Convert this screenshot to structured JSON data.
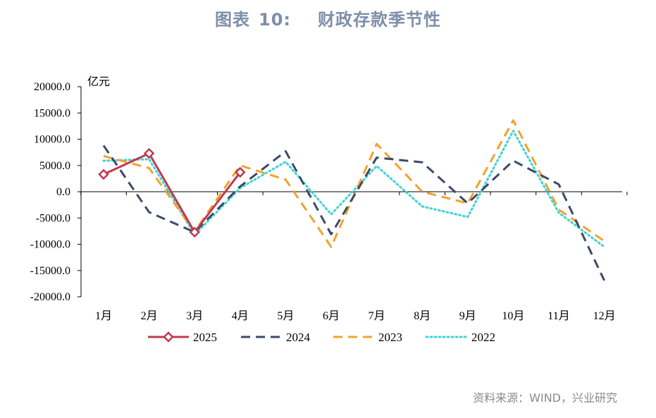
{
  "title": {
    "prefix": "图表",
    "number": "10:",
    "text": "财政存款季节性"
  },
  "source": "资料来源：WIND，兴业研究",
  "chart_data": {
    "type": "line",
    "unit_label": "亿元",
    "categories": [
      "1月",
      "2月",
      "3月",
      "4月",
      "5月",
      "6月",
      "7月",
      "8月",
      "9月",
      "10月",
      "11月",
      "12月"
    ],
    "ylim": [
      -20000,
      20000
    ],
    "yticks": [
      20000,
      15000,
      10000,
      5000,
      0,
      -5000,
      -10000,
      -15000,
      -20000
    ],
    "ytick_labels": [
      "20000.0",
      "15000.0",
      "10000.0",
      "5000.0",
      "0.0",
      "-5000.0",
      "-10000.0",
      "-15000.0",
      "-20000.0"
    ],
    "grid": false,
    "legend_position": "bottom",
    "series": [
      {
        "name": "2025",
        "color": "#c0394f",
        "style": "solid-marker",
        "values": [
          3300,
          7300,
          -7700,
          3700,
          null,
          null,
          null,
          null,
          null,
          null,
          null,
          null
        ]
      },
      {
        "name": "2024",
        "color": "#3a4a68",
        "style": "dashed",
        "values": [
          8800,
          -3900,
          -7700,
          1000,
          7700,
          -8100,
          6500,
          5600,
          -2200,
          5900,
          1400,
          -16900
        ]
      },
      {
        "name": "2023",
        "color": "#f3a12c",
        "style": "dashed",
        "values": [
          6800,
          4500,
          -7600,
          5000,
          2300,
          -10500,
          9100,
          0,
          -2200,
          13600,
          -3400,
          -9400
        ]
      },
      {
        "name": "2022",
        "color": "#40d3d3",
        "style": "dotted",
        "values": [
          5900,
          6200,
          -8200,
          700,
          5700,
          -4300,
          4900,
          -2800,
          -4800,
          11600,
          -4000,
          -10500
        ]
      }
    ]
  }
}
